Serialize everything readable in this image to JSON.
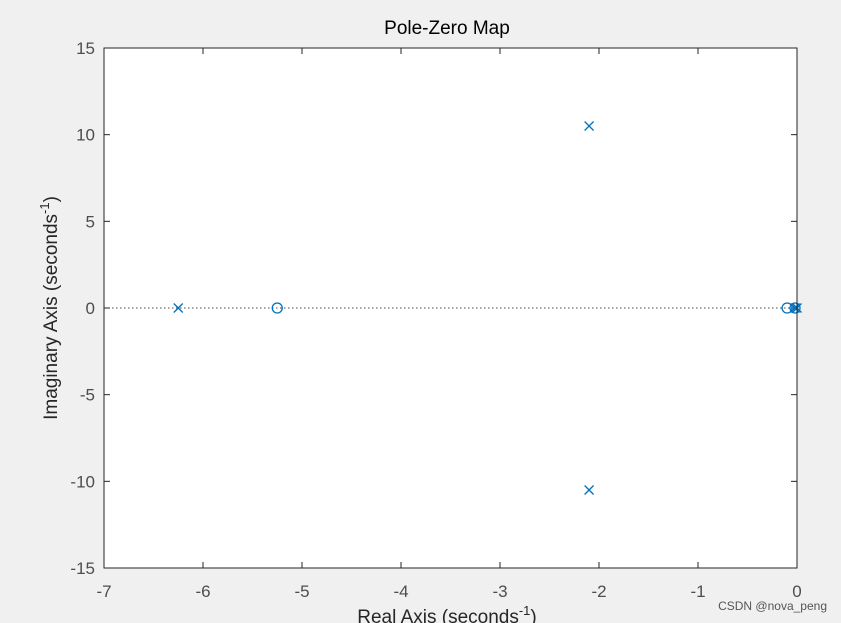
{
  "chart_data": {
    "type": "scatter",
    "title": "Pole-Zero Map",
    "xlabel": "Real Axis (seconds",
    "xlabel_sup": "-1",
    "xlabel_close": ")",
    "ylabel": "Imaginary Axis (seconds",
    "ylabel_sup": "-1",
    "ylabel_close": ")",
    "xlim": [
      -7,
      0
    ],
    "ylim": [
      -15,
      15
    ],
    "xticks": [
      -7,
      -6,
      -5,
      -4,
      -3,
      -2,
      -1,
      0
    ],
    "xtick_labels": [
      "-7",
      "-6",
      "-5",
      "-4",
      "-3",
      "-2",
      "-1",
      "0"
    ],
    "yticks": [
      -15,
      -10,
      -5,
      0,
      5,
      10,
      15
    ],
    "ytick_labels": [
      "-15",
      "-10",
      "-5",
      "0",
      "5",
      "10",
      "15"
    ],
    "grid": false,
    "zero_line": true,
    "series": [
      {
        "marker": "x",
        "color": "#0072bd",
        "points": [
          {
            "x": -6.25,
            "y": 0
          },
          {
            "x": -2.1,
            "y": 10.5
          },
          {
            "x": -2.1,
            "y": -10.5
          },
          {
            "x": -0.02,
            "y": 0
          },
          {
            "x": 0,
            "y": 0
          }
        ]
      },
      {
        "marker": "o",
        "color": "#0072bd",
        "points": [
          {
            "x": -5.25,
            "y": 0
          },
          {
            "x": -0.1,
            "y": 0
          },
          {
            "x": -0.02,
            "y": 0
          }
        ]
      }
    ]
  },
  "watermark": "CSDN @nova_peng",
  "colors": {
    "figure_bg": "#f0f0f0",
    "axes_bg": "#ffffff",
    "axis_color": "#262626",
    "tick_label_color": "#4d4d4d",
    "marker_color": "#0072bd"
  }
}
